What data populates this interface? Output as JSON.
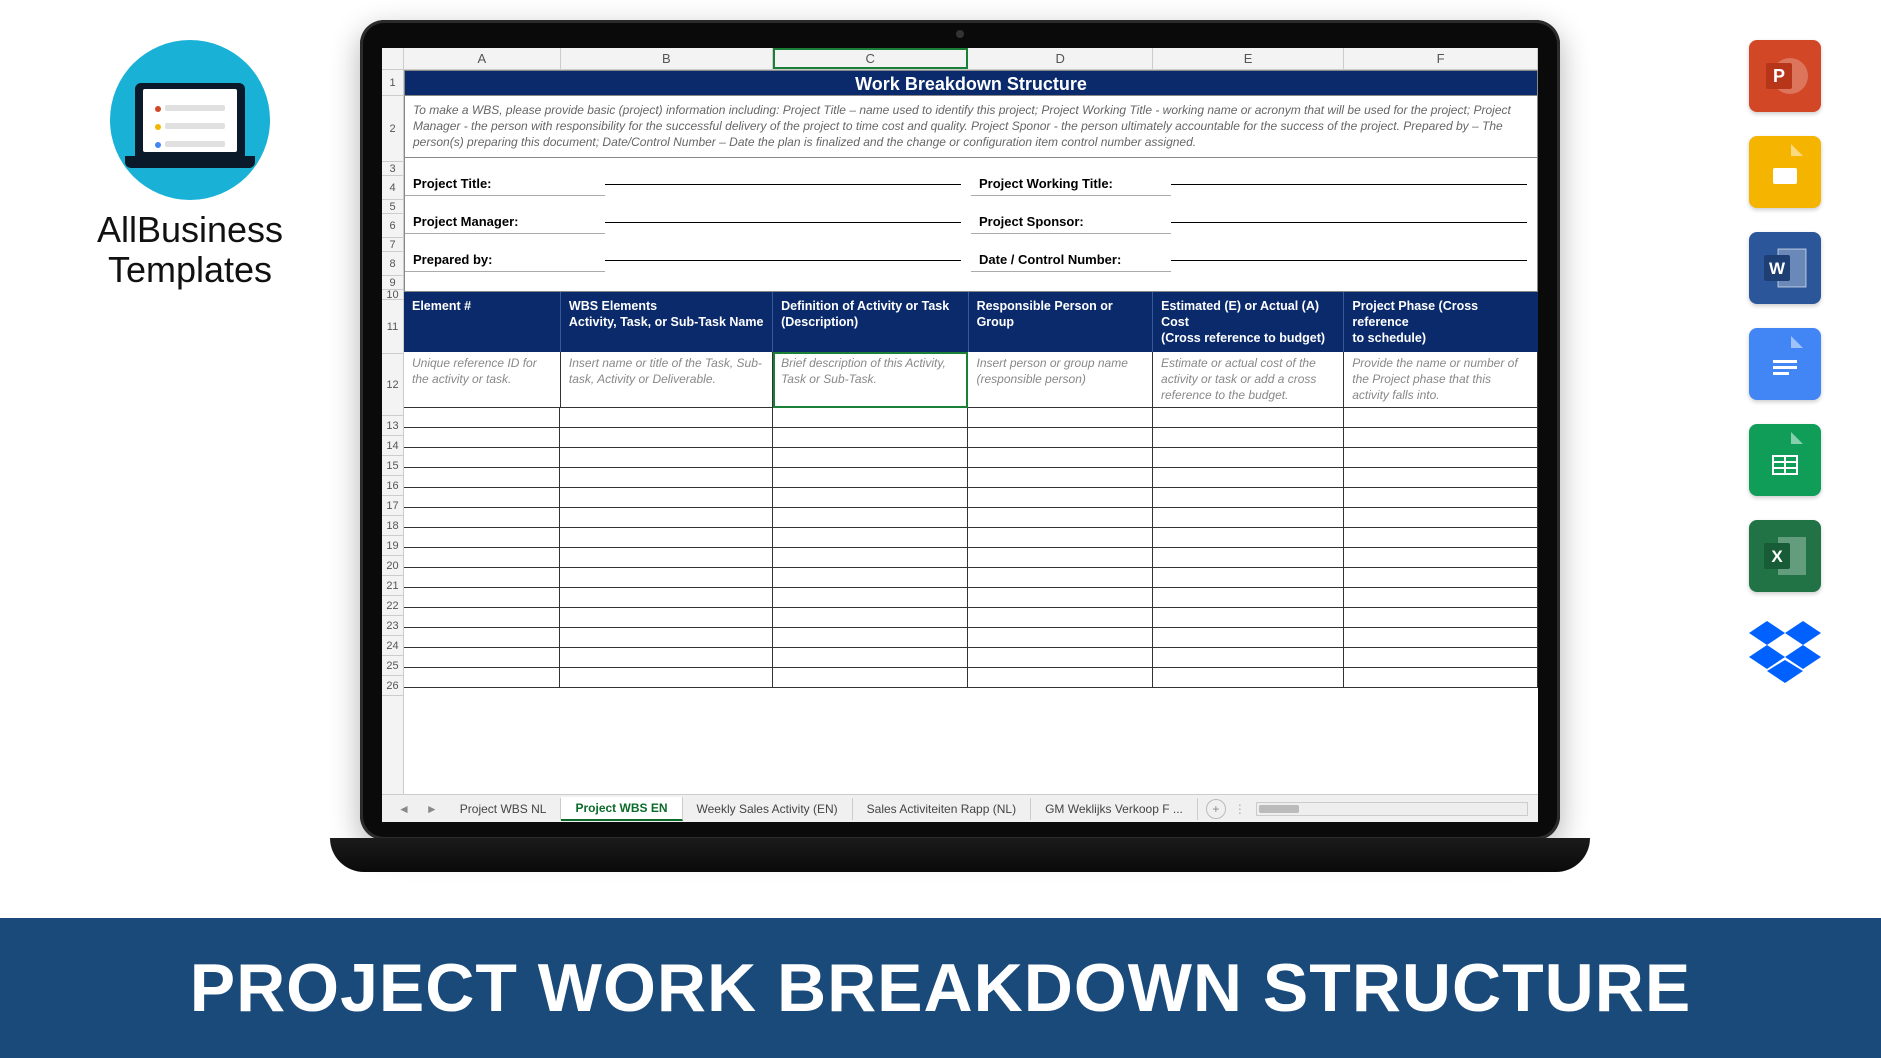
{
  "brand": {
    "line1": "AllBusiness",
    "line2": "Templates"
  },
  "banner": {
    "text": "PROJECT WORK BREAKDOWN STRUCTURE",
    "bg": "#1a4a7a",
    "color": "#ffffff"
  },
  "sheet": {
    "columns": [
      "A",
      "B",
      "C",
      "D",
      "E",
      "F"
    ],
    "rowNumbers": [
      1,
      2,
      3,
      4,
      5,
      6,
      7,
      8,
      9,
      10,
      11,
      12,
      13,
      14,
      15,
      16,
      17,
      18,
      19,
      20,
      21,
      22,
      23,
      24,
      25,
      26
    ],
    "title": "Work Breakdown Structure",
    "titleBg": "#0a2a6b",
    "instruction": "To make a WBS, please provide basic (project) information including: Project Title – name used to identify this project; Project Working Title - working name or acronym that will be used for the project; Project Manager - the person with responsibility for the successful delivery of the project to time cost and quality. Project Sponor - the person ultimately accountable for the success of the project. Prepared by – The person(s) preparing this document; Date/Control Number – Date the plan is finalized and the change or configuration item control number assigned.",
    "meta": {
      "r4l": "Project Title:",
      "r4r": "Project Working Title:",
      "r6l": "Project Manager:",
      "r6r": "Project Sponsor:",
      "r8l": "Prepared by:",
      "r8r": "Date / Control Number:"
    },
    "headers": {
      "c0": "Element #",
      "c1a": "WBS Elements",
      "c1b": "Activity, Task, or Sub-Task Name",
      "c2a": "Definition of Activity or Task",
      "c2b": "(Description)",
      "c3": "Responsible Person or Group",
      "c4a": "Estimated (E) or Actual (A) Cost",
      "c4b": "(Cross reference to budget)",
      "c5a": "Project Phase (Cross reference",
      "c5b": "to schedule)"
    },
    "hints": {
      "c0": "Unique reference ID for the activity or task.",
      "c1": "Insert name or title of the Task, Sub-task, Activity or Deliverable.",
      "c2": "Brief description of this Activity, Task or Sub-Task.",
      "c3": "Insert person or group name (responsible person)",
      "c4": "Estimate or actual cost of the activity or task or add a cross reference to the budget.",
      "c5": "Provide the name or number of the Project phase that this activity falls into."
    },
    "tabs": [
      "Project WBS NL",
      "Project WBS EN",
      "Weekly Sales Activity (EN)",
      "Sales Activiteiten Rapp (NL)",
      "GM Weklijks Verkoop F ..."
    ],
    "activeTab": 1
  },
  "apps": [
    {
      "name": "powerpoint",
      "label": "P",
      "bg": "#d24726"
    },
    {
      "name": "slides",
      "label": "",
      "bg": "#f4b400"
    },
    {
      "name": "word",
      "label": "W",
      "bg": "#2b579a"
    },
    {
      "name": "docs",
      "label": "",
      "bg": "#4285f4"
    },
    {
      "name": "sheets",
      "label": "",
      "bg": "#0f9d58"
    },
    {
      "name": "excel",
      "label": "X",
      "bg": "#217346"
    },
    {
      "name": "dropbox",
      "label": "",
      "bg": "#0061ff"
    }
  ]
}
